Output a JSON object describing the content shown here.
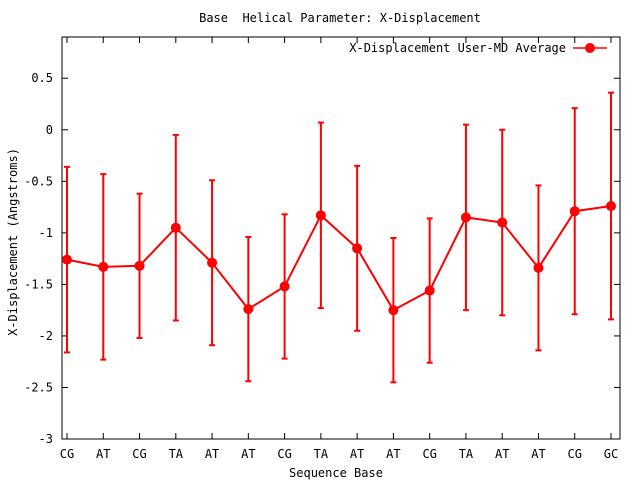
{
  "chart_data": {
    "type": "line",
    "title": "Base  Helical Parameter: X-Displacement",
    "xlabel": "Sequence Base",
    "ylabel": "X-Displacement (Angstroms)",
    "categories": [
      "CG",
      "AT",
      "CG",
      "TA",
      "AT",
      "AT",
      "CG",
      "TA",
      "AT",
      "AT",
      "CG",
      "TA",
      "AT",
      "AT",
      "CG",
      "GC"
    ],
    "ylim": [
      -3,
      0.9
    ],
    "yticks": [
      -3,
      -2.5,
      -2,
      -1.5,
      -1,
      -0.5,
      0,
      0.5
    ],
    "ytick_labels": [
      "-3",
      "-2.5",
      "-2",
      "-1.5",
      "-1",
      "-0.5",
      "0",
      "0.5"
    ],
    "grid": false,
    "legend_position": "top-right",
    "series": [
      {
        "name": "X-Displacement User-MD Average",
        "color": "#ff0000",
        "values": [
          -1.26,
          -1.33,
          -1.32,
          -0.95,
          -1.29,
          -1.74,
          -1.52,
          -0.83,
          -1.15,
          -1.75,
          -1.56,
          -0.85,
          -0.9,
          -1.34,
          -0.79,
          -0.74
        ],
        "error_low": [
          -2.16,
          -2.23,
          -2.02,
          -1.85,
          -2.09,
          -2.44,
          -2.22,
          -1.73,
          -1.95,
          -2.45,
          -2.26,
          -1.75,
          -1.8,
          -2.14,
          -1.79,
          -1.84
        ],
        "error_high": [
          -0.36,
          -0.43,
          -0.62,
          -0.05,
          -0.49,
          -1.04,
          -0.82,
          0.07,
          -0.35,
          -1.05,
          -0.86,
          0.05,
          0.0,
          -0.54,
          0.21,
          0.36
        ]
      }
    ]
  }
}
